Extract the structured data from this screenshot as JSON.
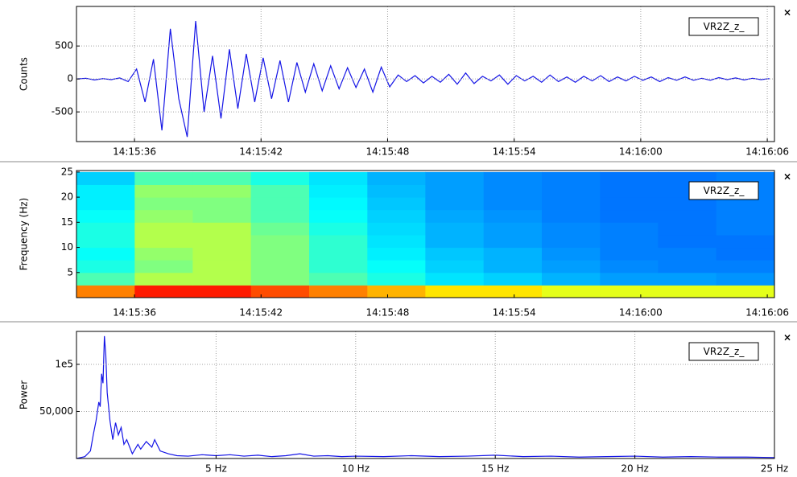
{
  "chart_data": [
    {
      "type": "line",
      "ylabel": "Counts",
      "close_button": "×",
      "x": [
        33.3,
        33.7,
        34.1,
        34.5,
        34.9,
        35.3,
        35.7,
        36.1,
        36.5,
        36.9,
        37.3,
        37.7,
        38.1,
        38.5,
        38.9,
        39.3,
        39.7,
        40.1,
        40.5,
        40.9,
        41.3,
        41.7,
        42.1,
        42.5,
        42.9,
        43.3,
        43.7,
        44.1,
        44.5,
        44.9,
        45.3,
        45.7,
        46.1,
        46.5,
        46.9,
        47.3,
        47.7,
        48.1,
        48.5,
        48.9,
        49.3,
        49.7,
        50.1,
        50.5,
        50.9,
        51.3,
        51.7,
        52.1,
        52.5,
        52.9,
        53.3,
        53.7,
        54.1,
        54.5,
        54.9,
        55.3,
        55.7,
        56.1,
        56.5,
        56.9,
        57.3,
        57.7,
        58.1,
        58.5,
        58.9,
        59.3,
        59.7,
        60.1,
        60.5,
        60.9,
        61.3,
        61.7,
        62.1,
        62.5,
        62.9,
        63.3,
        63.7,
        64.1,
        64.5,
        64.9,
        65.3,
        65.7,
        66.1
      ],
      "series": [
        {
          "name": "VR2Z_z_",
          "color": "#1414e6",
          "values": [
            0,
            10,
            -15,
            5,
            -10,
            15,
            -40,
            150,
            -350,
            300,
            -780,
            760,
            -300,
            -880,
            880,
            -500,
            350,
            -600,
            450,
            -450,
            380,
            -350,
            320,
            -300,
            280,
            -350,
            250,
            -200,
            230,
            -180,
            200,
            -150,
            170,
            -130,
            150,
            -200,
            180,
            -120,
            60,
            -40,
            50,
            -60,
            40,
            -50,
            70,
            -80,
            90,
            -70,
            40,
            -30,
            60,
            -80,
            50,
            -30,
            40,
            -50,
            60,
            -40,
            30,
            -50,
            40,
            -30,
            50,
            -40,
            30,
            -30,
            40,
            -20,
            30,
            -40,
            20,
            -20,
            30,
            -20,
            10,
            -20,
            20,
            -10,
            15,
            -15,
            10,
            -10,
            5
          ]
        }
      ],
      "xlim": [
        33.25,
        66.34
      ],
      "xticks": [
        {
          "value": 36,
          "label": "14:15:36"
        },
        {
          "value": 42,
          "label": "14:15:42"
        },
        {
          "value": 48,
          "label": "14:15:48"
        },
        {
          "value": 54,
          "label": "14:15:54"
        },
        {
          "value": 60,
          "label": "14:16:00"
        },
        {
          "value": 66,
          "label": "14:16:06"
        }
      ],
      "ylim": [
        -950,
        1100
      ],
      "yticks": [
        -500,
        0,
        500
      ],
      "grid": true
    },
    {
      "type": "heatmap",
      "ylabel": "Frequency (Hz)",
      "name": "VR2Z_z_",
      "close_button": "×",
      "colormap": "jet",
      "zlim": [
        0,
        1
      ],
      "x": [
        34.63,
        37.39,
        40.14,
        42.9,
        45.66,
        48.42,
        51.17,
        53.93,
        56.69,
        59.45,
        62.2,
        64.96
      ],
      "y": [
        1.25,
        3.75,
        6.25,
        8.75,
        11.25,
        13.75,
        16.25,
        18.75,
        21.25,
        23.75
      ],
      "z": [
        [
          0.75,
          0.85,
          0.85,
          0.8,
          0.75,
          0.7,
          0.65,
          0.65,
          0.6,
          0.6,
          0.6,
          0.6
        ],
        [
          0.45,
          0.55,
          0.55,
          0.5,
          0.45,
          0.4,
          0.35,
          0.33,
          0.3,
          0.28,
          0.28,
          0.27
        ],
        [
          0.4,
          0.5,
          0.55,
          0.5,
          0.42,
          0.38,
          0.33,
          0.3,
          0.28,
          0.26,
          0.25,
          0.25
        ],
        [
          0.38,
          0.52,
          0.55,
          0.5,
          0.42,
          0.36,
          0.32,
          0.3,
          0.27,
          0.25,
          0.25,
          0.24
        ],
        [
          0.4,
          0.55,
          0.55,
          0.5,
          0.42,
          0.35,
          0.3,
          0.28,
          0.26,
          0.25,
          0.24,
          0.24
        ],
        [
          0.4,
          0.55,
          0.55,
          0.48,
          0.4,
          0.34,
          0.3,
          0.28,
          0.26,
          0.25,
          0.24,
          0.25
        ],
        [
          0.38,
          0.52,
          0.5,
          0.45,
          0.38,
          0.33,
          0.29,
          0.27,
          0.25,
          0.24,
          0.24,
          0.25
        ],
        [
          0.36,
          0.5,
          0.5,
          0.45,
          0.37,
          0.32,
          0.28,
          0.26,
          0.25,
          0.24,
          0.24,
          0.25
        ],
        [
          0.36,
          0.52,
          0.52,
          0.45,
          0.36,
          0.31,
          0.28,
          0.26,
          0.25,
          0.24,
          0.24,
          0.25
        ],
        [
          0.33,
          0.45,
          0.45,
          0.4,
          0.35,
          0.3,
          0.28,
          0.26,
          0.25,
          0.24,
          0.24,
          0.25
        ]
      ],
      "xlim": [
        33.25,
        66.34
      ],
      "xticks": [
        {
          "value": 36,
          "label": "14:15:36"
        },
        {
          "value": 42,
          "label": "14:15:42"
        },
        {
          "value": 48,
          "label": "14:15:48"
        },
        {
          "value": 54,
          "label": "14:15:54"
        },
        {
          "value": 60,
          "label": "14:16:00"
        },
        {
          "value": 66,
          "label": "14:16:06"
        }
      ],
      "ylim": [
        0,
        25.3
      ],
      "yticks": [
        5,
        10,
        15,
        20,
        25
      ],
      "grid": false
    },
    {
      "type": "line",
      "ylabel": "Power",
      "close_button": "×",
      "x": [
        0,
        0.3,
        0.5,
        0.6,
        0.7,
        0.8,
        0.85,
        0.9,
        0.95,
        1.0,
        1.05,
        1.1,
        1.2,
        1.3,
        1.4,
        1.5,
        1.6,
        1.7,
        1.8,
        2.0,
        2.2,
        2.3,
        2.5,
        2.7,
        2.8,
        3.0,
        3.3,
        3.6,
        4.0,
        4.5,
        5,
        5.5,
        6,
        6.5,
        7,
        7.5,
        8,
        8.5,
        9,
        9.5,
        10,
        11,
        12,
        13,
        14,
        15,
        16,
        17,
        18,
        19,
        20,
        21,
        22,
        23,
        24,
        25
      ],
      "series": [
        {
          "name": "VR2Z_z_",
          "color": "#1414e6",
          "values": [
            0,
            2000,
            8000,
            25000,
            40000,
            60000,
            55000,
            90000,
            80000,
            130000,
            110000,
            70000,
            40000,
            20000,
            38000,
            25000,
            33000,
            15000,
            20000,
            5000,
            15000,
            10000,
            18000,
            12000,
            20000,
            8000,
            5000,
            3000,
            2500,
            4000,
            3000,
            4000,
            2500,
            3500,
            2000,
            3000,
            5000,
            2500,
            3000,
            2000,
            2500,
            2000,
            3000,
            2000,
            2500,
            3500,
            2000,
            2500,
            1500,
            2000,
            2500,
            1500,
            2000,
            1500,
            1500,
            1000
          ]
        }
      ],
      "xlim": [
        0,
        25
      ],
      "xticks": [
        {
          "value": 5,
          "label": "5 Hz"
        },
        {
          "value": 10,
          "label": "10 Hz"
        },
        {
          "value": 15,
          "label": "15 Hz"
        },
        {
          "value": 20,
          "label": "20 Hz"
        },
        {
          "value": 25,
          "label": "25 Hz"
        }
      ],
      "ylim": [
        0,
        135000
      ],
      "yticks": [
        {
          "value": 50000,
          "label": "50,000"
        },
        {
          "value": 100000,
          "label": "1e5"
        }
      ],
      "grid": true
    }
  ]
}
